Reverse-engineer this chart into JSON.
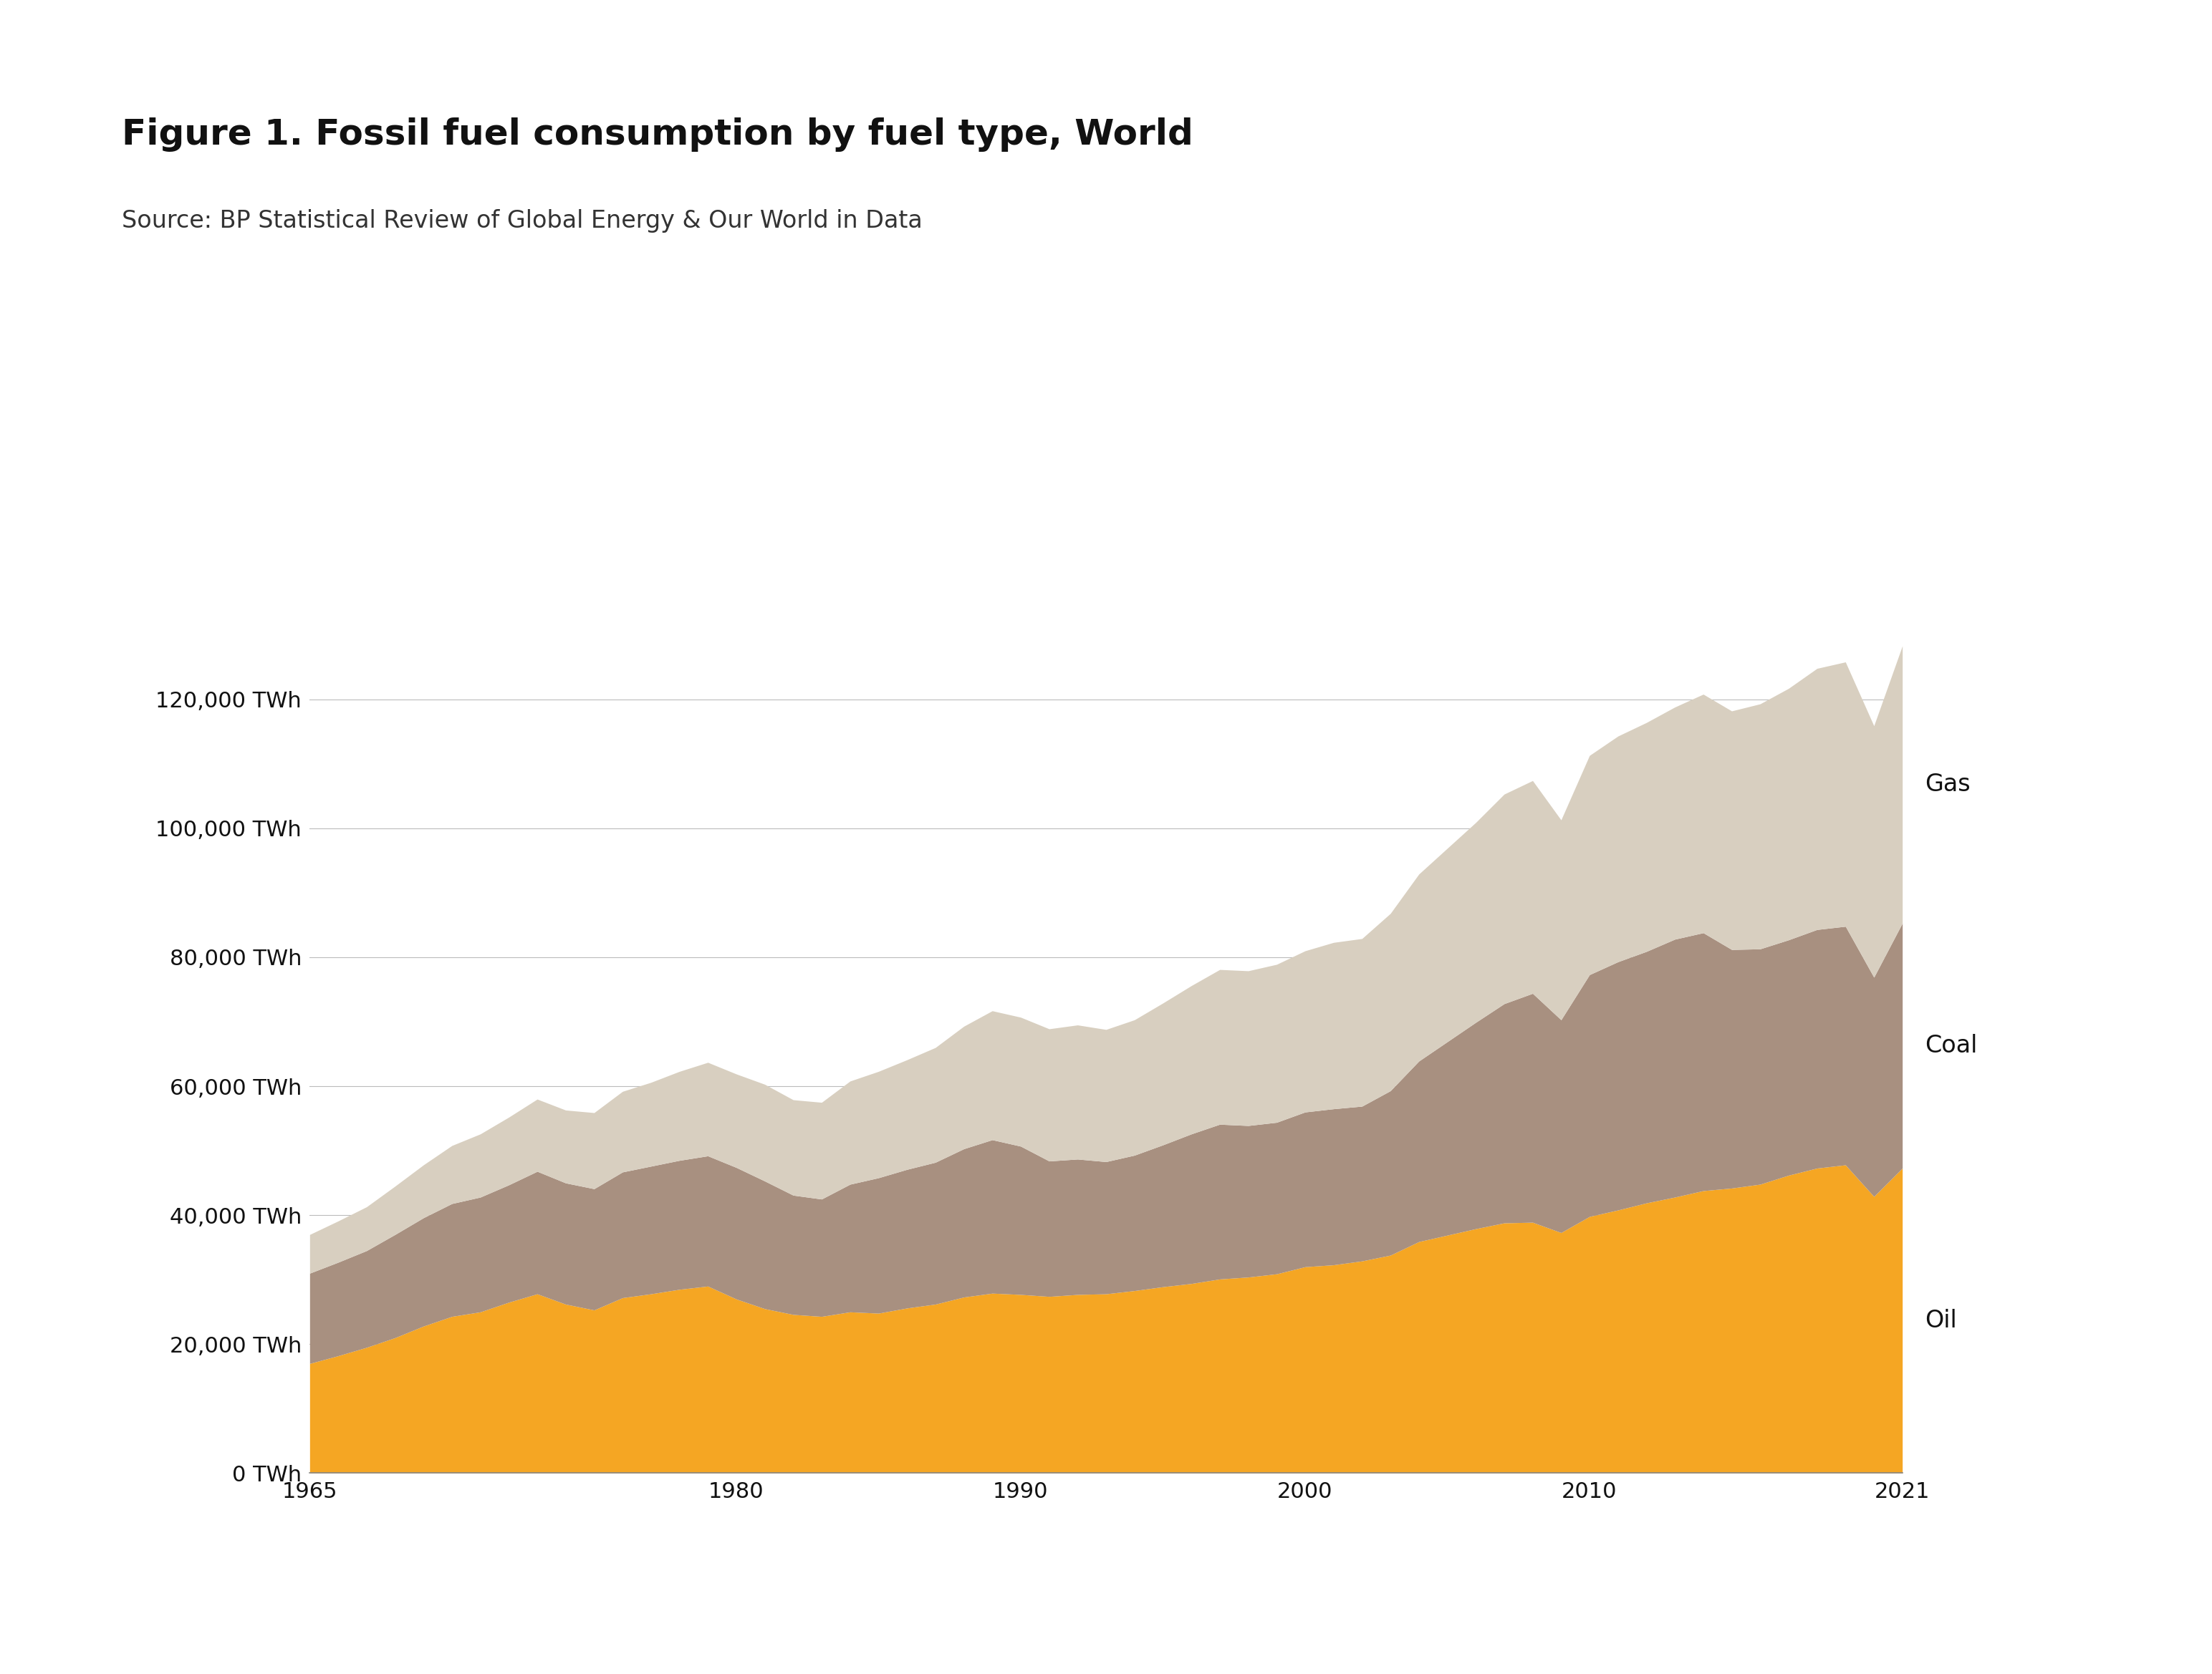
{
  "title": "Figure 1. Fossil fuel consumption by fuel type, World",
  "subtitle": "Source: BP Statistical Review of Global Energy & Our World in Data",
  "title_fontsize": 36,
  "subtitle_fontsize": 24,
  "background_color": "#ffffff",
  "plot_bg_color": "#ffffff",
  "oil_color": "#F5A623",
  "coal_color": "#A89080",
  "gas_color": "#D8CFC0",
  "years": [
    1965,
    1966,
    1967,
    1968,
    1969,
    1970,
    1971,
    1972,
    1973,
    1974,
    1975,
    1976,
    1977,
    1978,
    1979,
    1980,
    1981,
    1982,
    1983,
    1984,
    1985,
    1986,
    1987,
    1988,
    1989,
    1990,
    1991,
    1992,
    1993,
    1994,
    1995,
    1996,
    1997,
    1998,
    1999,
    2000,
    2001,
    2002,
    2003,
    2004,
    2005,
    2006,
    2007,
    2008,
    2009,
    2010,
    2011,
    2012,
    2013,
    2014,
    2015,
    2016,
    2017,
    2018,
    2019,
    2020,
    2021
  ],
  "oil": [
    17000,
    18200,
    19500,
    21000,
    22800,
    24300,
    25000,
    26500,
    27800,
    26200,
    25300,
    27200,
    27800,
    28500,
    29000,
    27000,
    25500,
    24600,
    24300,
    25000,
    24800,
    25600,
    26200,
    27300,
    27900,
    27700,
    27400,
    27700,
    27800,
    28300,
    28900,
    29400,
    30100,
    30400,
    30900,
    32000,
    32300,
    32900,
    33800,
    35900,
    36900,
    37900,
    38800,
    38900,
    37300,
    39800,
    40800,
    41900,
    42800,
    43800,
    44200,
    44800,
    46200,
    47300,
    47800,
    42900,
    47300
  ],
  "coal": [
    14000,
    14500,
    15000,
    16000,
    16800,
    17500,
    17800,
    18200,
    19000,
    18800,
    18800,
    19500,
    19800,
    20000,
    20200,
    20400,
    19800,
    18500,
    18200,
    19800,
    21000,
    21500,
    22000,
    23000,
    23800,
    23000,
    21000,
    21000,
    20500,
    21000,
    22000,
    23200,
    24000,
    23500,
    23500,
    24000,
    24200,
    24000,
    25500,
    28000,
    30000,
    32000,
    34000,
    35500,
    33000,
    37500,
    38500,
    39000,
    40000,
    40000,
    37000,
    36500,
    36500,
    37000,
    37000,
    34000,
    38000
  ],
  "gas": [
    6000,
    6400,
    6800,
    7500,
    8200,
    9000,
    9800,
    10500,
    11200,
    11300,
    11800,
    12500,
    13000,
    13800,
    14500,
    14500,
    15000,
    14800,
    15000,
    16000,
    16500,
    17000,
    17800,
    19000,
    20000,
    20000,
    20500,
    20800,
    20500,
    21000,
    22000,
    23000,
    24000,
    24000,
    24500,
    25000,
    25800,
    26000,
    27500,
    29000,
    30000,
    31000,
    32500,
    33000,
    31000,
    34000,
    35000,
    35500,
    36000,
    37000,
    37000,
    38000,
    39000,
    40500,
    41000,
    39000,
    43000
  ],
  "xlim": [
    1965,
    2021
  ],
  "ylim": [
    0,
    135000
  ],
  "yticks": [
    0,
    20000,
    40000,
    60000,
    80000,
    100000,
    120000
  ],
  "ytick_labels": [
    "0 TWh",
    "20,000 TWh",
    "40,000 TWh",
    "60,000 TWh",
    "80,000 TWh",
    "100,000 TWh",
    "120,000 TWh"
  ],
  "xticks": [
    1965,
    1980,
    1990,
    2000,
    2010,
    2021
  ],
  "label_fontsize": 24,
  "tick_fontsize": 22,
  "grid_color": "#bbbbbb",
  "axis_color": "#cccccc"
}
